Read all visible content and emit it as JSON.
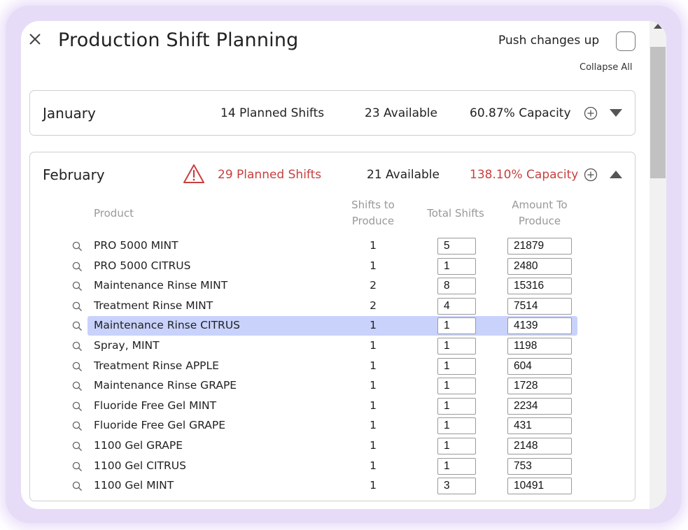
{
  "window": {
    "title": "Production Shift Planning",
    "push_changes_label": "Push changes up",
    "push_changes_checked": false,
    "collapse_all_label": "Collapse All"
  },
  "months": [
    {
      "name": "January",
      "planned": "14 Planned Shifts",
      "available": "23 Available",
      "capacity": "60.87% Capacity",
      "expanded": false,
      "warning": false
    },
    {
      "name": "February",
      "planned": "29 Planned Shifts",
      "available": "21 Available",
      "capacity": "138.10% Capacity",
      "expanded": true,
      "warning": true,
      "warning_color": "#c7403f",
      "columns": {
        "product": "Product",
        "shifts_to_produce": "Shifts to Produce",
        "total_shifts": "Total Shifts",
        "amount_to_produce": "Amount To Produce"
      },
      "rows": [
        {
          "product": "PRO 5000 MINT",
          "shifts": "1",
          "total": "5",
          "amount": "21879"
        },
        {
          "product": "PRO 5000 CITRUS",
          "shifts": "1",
          "total": "1",
          "amount": "2480"
        },
        {
          "product": "Maintenance Rinse MINT",
          "shifts": "2",
          "total": "8",
          "amount": "15316"
        },
        {
          "product": "Treatment Rinse MINT",
          "shifts": "2",
          "total": "4",
          "amount": "7514"
        },
        {
          "product": "Maintenance Rinse CITRUS",
          "shifts": "1",
          "total": "1",
          "amount": "4139",
          "selected": true
        },
        {
          "product": "Spray, MINT",
          "shifts": "1",
          "total": "1",
          "amount": "1198"
        },
        {
          "product": "Treatment Rinse APPLE",
          "shifts": "1",
          "total": "1",
          "amount": "604"
        },
        {
          "product": "Maintenance Rinse GRAPE",
          "shifts": "1",
          "total": "1",
          "amount": "1728"
        },
        {
          "product": "Fluoride Free Gel MINT",
          "shifts": "1",
          "total": "1",
          "amount": "2234"
        },
        {
          "product": "Fluoride Free Gel GRAPE",
          "shifts": "1",
          "total": "1",
          "amount": "431"
        },
        {
          "product": "1100 Gel GRAPE",
          "shifts": "1",
          "total": "1",
          "amount": "2148"
        },
        {
          "product": "1100 Gel CITRUS",
          "shifts": "1",
          "total": "1",
          "amount": "753"
        },
        {
          "product": "1100 Gel MINT",
          "shifts": "1",
          "total": "3",
          "amount": "10491"
        }
      ]
    }
  ],
  "icons": {
    "close": "close-icon",
    "warning": "warning-triangle-icon",
    "add": "plus-circle-icon",
    "expand": "caret-down-icon",
    "collapse": "caret-up-icon",
    "search": "search-icon"
  }
}
